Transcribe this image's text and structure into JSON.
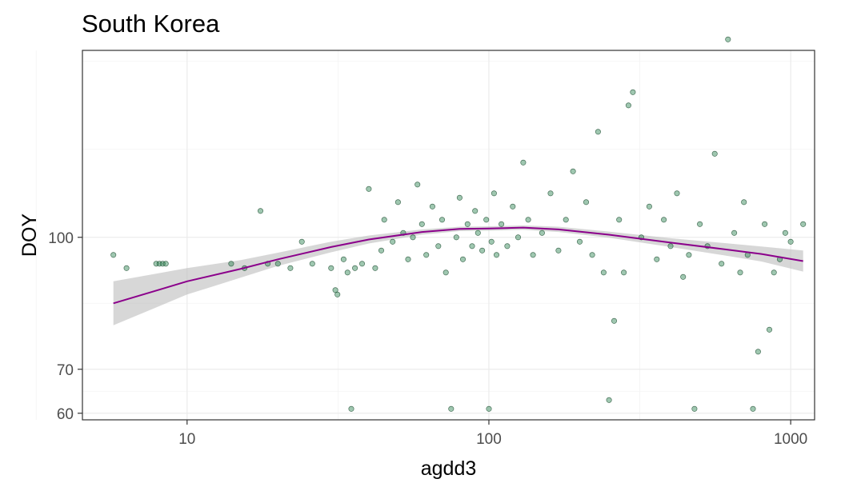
{
  "chart_data": {
    "type": "scatter",
    "title": "South Korea",
    "xlabel": "agdd3",
    "ylabel": "DOY",
    "x_scale": "log10",
    "xlim": [
      4.5,
      1200
    ],
    "ylim": [
      58.5,
      142.5
    ],
    "x_ticks": [
      10,
      100,
      1000
    ],
    "x_tick_labels": [
      "10",
      "100",
      "1000"
    ],
    "y_ticks": [
      60,
      70,
      100
    ],
    "y_tick_labels": [
      "60",
      "70",
      "100"
    ],
    "grid": true,
    "legend": "none",
    "colors": {
      "points": "#1b7a43",
      "smooth_line": "#8b008b",
      "confidence_band": "#bdbdbd",
      "panel_border": "#333333",
      "grid": "#ebebeb"
    },
    "smooth": {
      "x": [
        5.7,
        8,
        10,
        15,
        20,
        30,
        40,
        60,
        80,
        100,
        130,
        170,
        250,
        400,
        600,
        800,
        1100
      ],
      "y": [
        85,
        88,
        90,
        92.8,
        95,
        97.8,
        99.5,
        101.2,
        101.9,
        102,
        102.2,
        101.8,
        100.6,
        98.8,
        97.3,
        96.2,
        94.6
      ],
      "lower": [
        80,
        84.2,
        87,
        90.8,
        93.5,
        96.6,
        98.6,
        100.6,
        101.4,
        101.5,
        101.7,
        101.2,
        99.9,
        97.8,
        95.9,
        94.5,
        92.2
      ],
      "upper": [
        90,
        91.8,
        93,
        94.8,
        96.5,
        99,
        100.4,
        101.8,
        102.4,
        102.5,
        102.7,
        102.4,
        101.3,
        99.8,
        98.7,
        97.9,
        97
      ]
    },
    "points": [
      [
        5.7,
        96
      ],
      [
        6.3,
        93
      ],
      [
        7.9,
        94
      ],
      [
        8.1,
        94
      ],
      [
        8.3,
        94
      ],
      [
        8.5,
        94
      ],
      [
        14,
        94
      ],
      [
        15.5,
        93
      ],
      [
        17.5,
        106
      ],
      [
        18.5,
        94
      ],
      [
        20,
        94
      ],
      [
        22,
        93
      ],
      [
        24,
        99
      ],
      [
        26,
        94
      ],
      [
        30,
        93
      ],
      [
        31,
        88
      ],
      [
        31.5,
        87
      ],
      [
        33,
        95
      ],
      [
        34,
        92
      ],
      [
        35,
        61
      ],
      [
        36,
        93
      ],
      [
        38,
        94
      ],
      [
        40,
        111
      ],
      [
        42,
        93
      ],
      [
        44,
        97
      ],
      [
        45,
        104
      ],
      [
        48,
        99
      ],
      [
        50,
        108
      ],
      [
        52,
        101
      ],
      [
        54,
        95
      ],
      [
        56,
        100
      ],
      [
        58,
        112
      ],
      [
        60,
        103
      ],
      [
        62,
        96
      ],
      [
        65,
        107
      ],
      [
        68,
        98
      ],
      [
        70,
        104
      ],
      [
        72,
        92
      ],
      [
        75,
        61
      ],
      [
        78,
        100
      ],
      [
        80,
        109
      ],
      [
        82,
        95
      ],
      [
        85,
        103
      ],
      [
        88,
        98
      ],
      [
        90,
        106
      ],
      [
        92,
        101
      ],
      [
        95,
        97
      ],
      [
        98,
        104
      ],
      [
        100,
        61
      ],
      [
        102,
        99
      ],
      [
        104,
        110
      ],
      [
        106,
        96
      ],
      [
        110,
        103
      ],
      [
        115,
        98
      ],
      [
        120,
        107
      ],
      [
        125,
        100
      ],
      [
        130,
        117
      ],
      [
        135,
        104
      ],
      [
        140,
        96
      ],
      [
        150,
        101
      ],
      [
        160,
        110
      ],
      [
        170,
        97
      ],
      [
        180,
        104
      ],
      [
        190,
        115
      ],
      [
        200,
        99
      ],
      [
        210,
        108
      ],
      [
        220,
        96
      ],
      [
        230,
        124
      ],
      [
        240,
        92
      ],
      [
        250,
        63
      ],
      [
        260,
        81
      ],
      [
        270,
        104
      ],
      [
        280,
        92
      ],
      [
        290,
        130
      ],
      [
        300,
        133
      ],
      [
        320,
        100
      ],
      [
        340,
        107
      ],
      [
        360,
        95
      ],
      [
        380,
        104
      ],
      [
        400,
        98
      ],
      [
        420,
        110
      ],
      [
        440,
        91
      ],
      [
        460,
        96
      ],
      [
        480,
        61
      ],
      [
        500,
        103
      ],
      [
        530,
        98
      ],
      [
        560,
        119
      ],
      [
        590,
        94
      ],
      [
        620,
        145
      ],
      [
        650,
        101
      ],
      [
        680,
        92
      ],
      [
        700,
        108
      ],
      [
        720,
        96
      ],
      [
        750,
        61
      ],
      [
        780,
        74
      ],
      [
        820,
        103
      ],
      [
        850,
        79
      ],
      [
        880,
        92
      ],
      [
        920,
        95
      ],
      [
        960,
        101
      ],
      [
        1000,
        99
      ],
      [
        1100,
        103
      ]
    ]
  }
}
